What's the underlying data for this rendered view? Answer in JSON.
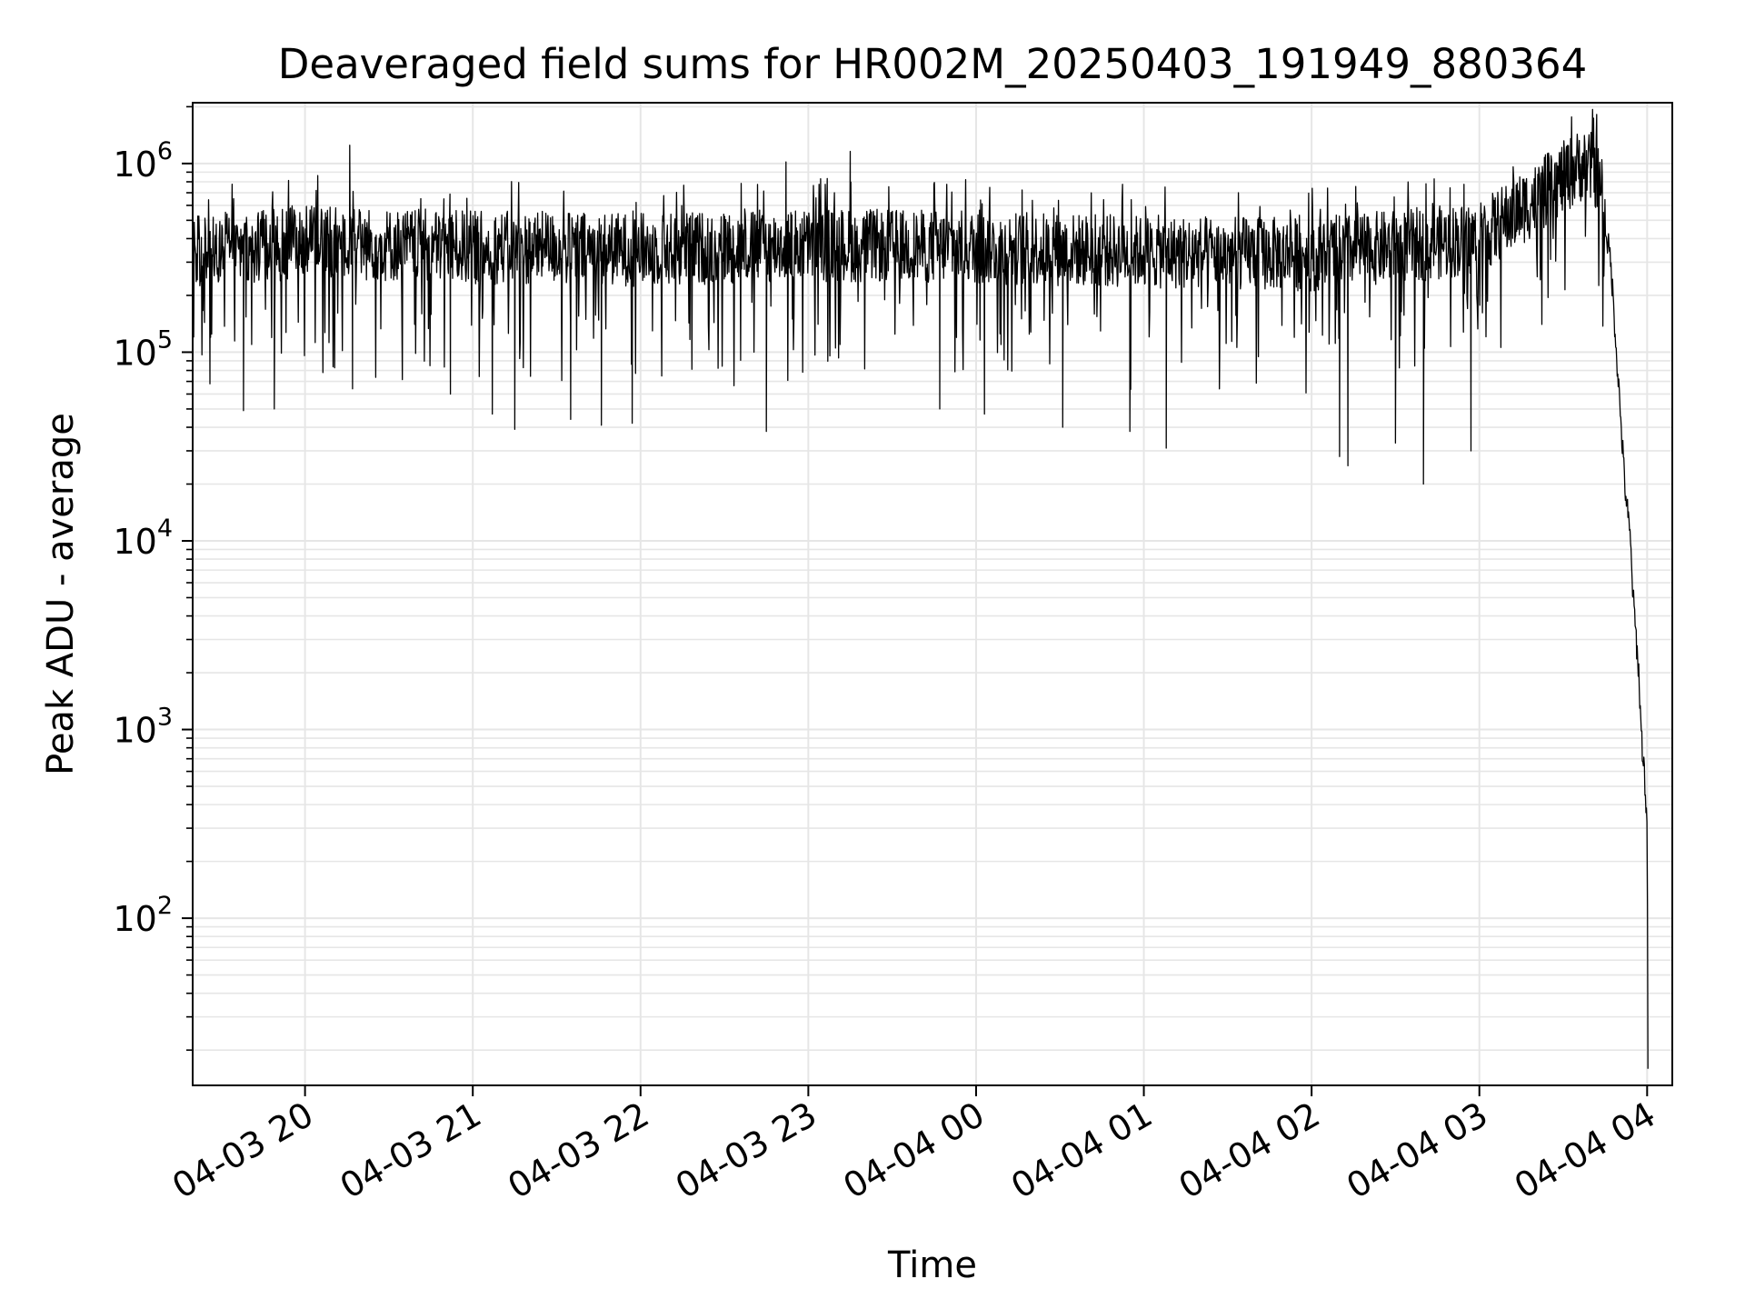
{
  "chart_data": {
    "type": "line",
    "title": "Deaveraged field sums for HR002M_20250403_191949_880364",
    "xlabel": "Time",
    "ylabel": "Peak ADU - average",
    "yscale": "log",
    "ylim": [
      13,
      2100000
    ],
    "xlim": [
      "2025-04-03 19:19:49",
      "2025-04-04 04:09:00"
    ],
    "grid": true,
    "line_color": "#000000",
    "grid_color": "#e6e6e6",
    "x_ticks": [
      "04-03 20",
      "04-03 21",
      "04-03 22",
      "04-03 23",
      "04-04 00",
      "04-04 01",
      "04-04 02",
      "04-04 03",
      "04-04 04"
    ],
    "x_tick_values": [
      "2025-04-03 20:00",
      "2025-04-03 21:00",
      "2025-04-03 22:00",
      "2025-04-03 23:00",
      "2025-04-04 00:00",
      "2025-04-04 01:00",
      "2025-04-04 02:00",
      "2025-04-04 03:00",
      "2025-04-04 04:00"
    ],
    "y_ticks": [
      {
        "value": 100,
        "base": "10",
        "exp": "2"
      },
      {
        "value": 1000,
        "base": "10",
        "exp": "3"
      },
      {
        "value": 10000,
        "base": "10",
        "exp": "4"
      },
      {
        "value": 100000,
        "base": "10",
        "exp": "5"
      },
      {
        "value": 1000000,
        "base": "10",
        "exp": "6"
      }
    ],
    "series": [
      {
        "values": {
          "baseline": [
            [
              "2025-04-03 19:20",
              350000
            ],
            [
              "2025-04-03 20:00",
              380000
            ],
            [
              "2025-04-03 21:00",
              360000
            ],
            [
              "2025-04-03 22:00",
              350000
            ],
            [
              "2025-04-03 23:00",
              370000
            ],
            [
              "2025-04-04 00:00",
              360000
            ],
            [
              "2025-04-04 01:00",
              340000
            ],
            [
              "2025-04-04 02:00",
              330000
            ],
            [
              "2025-04-04 03:00",
              400000
            ],
            [
              "2025-04-04 03:20",
              650000
            ],
            [
              "2025-04-04 03:37",
              1000000
            ],
            [
              "2025-04-04 03:42",
              900000
            ],
            [
              "2025-04-04 03:47",
              300000
            ],
            [
              "2025-04-04 03:50",
              60000
            ],
            [
              "2025-04-04 03:52",
              20000
            ],
            [
              "2025-04-04 03:54",
              10000
            ],
            [
              "2025-04-04 03:55",
              5000
            ],
            [
              "2025-04-04 03:57",
              2000
            ],
            [
              "2025-04-04 03:58",
              900
            ],
            [
              "2025-04-04 03:59",
              600
            ],
            [
              "2025-04-04 04:00",
              300
            ],
            [
              "2025-04-04 04:00:20",
              13
            ]
          ],
          "spike_highs": [
            [
              "2025-04-03 20:16",
              1250000
            ],
            [
              "2025-04-03 22:52",
              1020000
            ],
            [
              "2025-04-03 23:15",
              1160000
            ],
            [
              "2025-04-04 03:39",
              1250000
            ]
          ],
          "dips": [
            [
              "2025-04-03 19:26",
              68000
            ],
            [
              "2025-04-03 19:38",
              49000
            ],
            [
              "2025-04-03 19:49",
              50000
            ],
            [
              "2025-04-03 20:17",
              64000
            ],
            [
              "2025-04-03 20:52",
              60000
            ],
            [
              "2025-04-03 21:07",
              47000
            ],
            [
              "2025-04-03 21:15",
              39000
            ],
            [
              "2025-04-03 21:35",
              44000
            ],
            [
              "2025-04-03 21:46",
              41000
            ],
            [
              "2025-04-03 21:57",
              42000
            ],
            [
              "2025-04-03 22:45",
              38000
            ],
            [
              "2025-04-03 23:47",
              50000
            ],
            [
              "2025-04-04 00:03",
              47000
            ],
            [
              "2025-04-04 00:31",
              40000
            ],
            [
              "2025-04-04 00:55",
              38000
            ],
            [
              "2025-04-04 01:08",
              31000
            ],
            [
              "2025-04-04 02:10",
              28000
            ],
            [
              "2025-04-04 02:13",
              25000
            ],
            [
              "2025-04-04 02:30",
              33000
            ],
            [
              "2025-04-04 02:40",
              20000
            ],
            [
              "2025-04-04 02:57",
              30000
            ]
          ]
        }
      }
    ]
  }
}
